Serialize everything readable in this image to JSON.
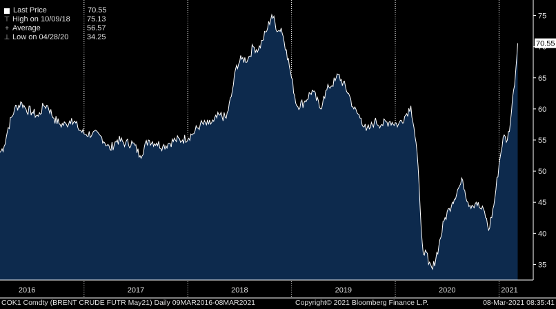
{
  "legend": {
    "last_price": {
      "label": "Last Price",
      "value": "70.55"
    },
    "high": {
      "label": "High on 10/09/18",
      "value": "75.13"
    },
    "average": {
      "label": "Average",
      "value": "56.57"
    },
    "low": {
      "label": "Low on 04/28/20",
      "value": "34.25"
    }
  },
  "last_value_tag": "70.55",
  "footer": {
    "ticker": "COK1 Comdty (BRENT CRUDE FUTR  May21)  Daily 09MAR2016-08MAR2021",
    "copyright": "Copyright© 2021 Bloomberg Finance L.P.",
    "timestamp": "08-Mar-2021 08:35:41"
  },
  "colors": {
    "background": "#000000",
    "area_fill": "#0d2a4d",
    "line": "#ffffff",
    "axis": "#ffffff",
    "text": "#e0e0e0"
  },
  "chart_data": {
    "type": "area",
    "ylim": [
      32.5,
      77.5
    ],
    "y_ticks": [
      35,
      40,
      45,
      50,
      55,
      60,
      65,
      70,
      75
    ],
    "x_ticks": [
      {
        "label": "2016",
        "date": 2016.45
      },
      {
        "label": "2017",
        "date": 2017.5
      },
      {
        "label": "2018",
        "date": 2018.5
      },
      {
        "label": "2019",
        "date": 2019.5
      },
      {
        "label": "2020",
        "date": 2020.5
      },
      {
        "label": "2021",
        "date": 2021.1
      }
    ],
    "year_separators": [
      2017.0,
      2018.0,
      2019.0,
      2020.0,
      2021.0
    ],
    "xlim": [
      2016.19,
      2021.19
    ],
    "x": [
      2016.19,
      2016.23,
      2016.27,
      2016.33,
      2016.4,
      2016.44,
      2016.5,
      2016.56,
      2016.61,
      2016.65,
      2016.71,
      2016.77,
      2016.83,
      2016.88,
      2016.94,
      2017.0,
      2017.08,
      2017.17,
      2017.25,
      2017.32,
      2017.4,
      2017.47,
      2017.54,
      2017.62,
      2017.7,
      2017.76,
      2017.82,
      2017.88,
      2017.95,
      2018.05,
      2018.12,
      2018.2,
      2018.25,
      2018.31,
      2018.37,
      2018.42,
      2018.47,
      2018.52,
      2018.58,
      2018.63,
      2018.68,
      2018.72,
      2018.77,
      2018.81,
      2018.87,
      2018.9,
      2018.95,
      2019.0,
      2019.05,
      2019.12,
      2019.2,
      2019.28,
      2019.31,
      2019.36,
      2019.42,
      2019.45,
      2019.55,
      2019.6,
      2019.67,
      2019.72,
      2019.76,
      2019.8,
      2019.87,
      2019.95,
      2020.03,
      2020.1,
      2020.15,
      2020.18,
      2020.21,
      2020.24,
      2020.26,
      2020.28,
      2020.3,
      2020.32,
      2020.36,
      2020.42,
      2020.47,
      2020.52,
      2020.55,
      2020.6,
      2020.65,
      2020.7,
      2020.74,
      2020.78,
      2020.82,
      2020.86,
      2020.9,
      2020.95,
      2021.0,
      2021.04,
      2021.08,
      2021.11,
      2021.14,
      2021.16,
      2021.18
    ],
    "values": [
      53,
      54,
      57,
      60,
      61,
      60,
      59.5,
      58.8,
      60.5,
      60.5,
      58.5,
      57.5,
      57.5,
      58.5,
      57,
      56,
      56,
      55.5,
      53.5,
      55,
      54.5,
      54.5,
      52.5,
      55,
      54.5,
      54,
      54.5,
      55,
      55,
      56,
      57.5,
      57.5,
      58,
      59,
      58.5,
      62,
      67,
      68,
      68,
      70,
      69.5,
      71,
      73,
      75.13,
      72.5,
      73,
      69.5,
      65,
      60.5,
      61,
      63,
      60,
      62,
      63.5,
      64.5,
      65.5,
      62.5,
      60,
      58.5,
      56.5,
      57,
      58,
      57.5,
      58,
      57.5,
      59,
      60.5,
      57,
      53,
      44,
      38.5,
      36.5,
      37,
      35,
      34.25,
      38,
      42,
      44,
      45,
      47,
      48.5,
      45,
      44.5,
      45,
      44,
      43.5,
      40.5,
      44.5,
      51,
      55.5,
      55,
      58,
      63,
      66,
      70.55
    ]
  }
}
